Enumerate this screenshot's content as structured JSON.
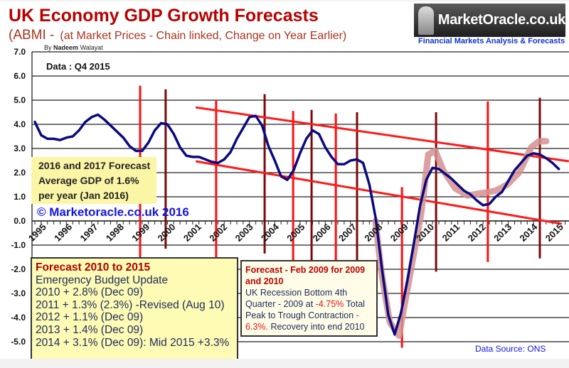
{
  "header": {
    "title": "UK Economy GDP Growth Forecasts",
    "subtitle_a": "(ABMI -",
    "subtitle_b": "(at Market Prices - Chain linked, Change on Year Earlier)",
    "byline_prefix": "By",
    "byline_name": "Nadeem",
    "byline_surname": "Walayat",
    "logo_text": "MarketOracle.co.uk",
    "tagline": "Financial Markets Analysis & Forecasts",
    "data_label": "Data : Q4 2015"
  },
  "annotations": {
    "forecast_2016": [
      "2016 and 2017 Forecast",
      "Average GDP of 1.6%",
      "per year (Jan 2016)"
    ],
    "copyright": "© Marketoracle.co.uk 2016",
    "budget_box": {
      "title": "Forecast 2010 to 2015",
      "lines": [
        "Emergency Budget Update",
        "2010 + 2.8% (Dec 09)",
        "2011 + 1.3% (2.3%) -Revised (Aug 10)",
        "2012 + 1.1% (Dec 09)",
        "2013 + 1.4% (Dec 09)",
        "2014 + 3.1% (Dec 09): Mid 2015 +3.3%"
      ]
    },
    "recession_box": {
      "title": "Forecast - Feb 2009 for 2009 and 2010",
      "text1": "UK Recession Bottom  4th Quarter - 2009 at",
      "red1": "-4.75%",
      "text2": " Total Peak to Trough Contraction",
      "red2": "- 6.3%.",
      "text3": " Recovery into end 2010"
    },
    "source": "Data Source: ONS"
  },
  "colors": {
    "gdp_line": "#0a0a80",
    "forecast_line": "#d4918f",
    "trend_line": "#ff1a1a",
    "marker_red": "#ff1010",
    "marker_dark": "#7a0a0a",
    "title": "#b80000"
  },
  "chart_data": {
    "type": "line",
    "title": "UK Economy GDP Growth Forecasts",
    "ylim": [
      -5.0,
      7.0
    ],
    "y_ticks": [
      "7.0",
      "6.0",
      "5.0",
      "4.0",
      "3.0",
      "2.0",
      "1.0",
      "0.0",
      "-1.0",
      "-2.0",
      "-3.0",
      "-4.0",
      "-5.0"
    ],
    "x_ticks": [
      "1995",
      "1996",
      "1997",
      "1998",
      "1999",
      "2000",
      "2001",
      "2002",
      "2003",
      "2004",
      "2005",
      "2006",
      "2007",
      "2008",
      "2009",
      "2010",
      "2011",
      "2012",
      "2013",
      "2014",
      "2015"
    ],
    "grid": true,
    "series": [
      {
        "role": "actual",
        "start": "1995 Q1",
        "frequency": "quarterly",
        "values": [
          4.1,
          3.55,
          3.4,
          3.4,
          3.35,
          3.45,
          3.5,
          3.75,
          4.1,
          4.3,
          4.4,
          4.2,
          3.95,
          3.7,
          3.45,
          3.1,
          2.9,
          2.9,
          3.25,
          3.75,
          4.05,
          4.0,
          3.6,
          3.05,
          2.7,
          2.65,
          2.65,
          2.55,
          2.45,
          2.4,
          2.55,
          2.85,
          3.4,
          3.85,
          4.3,
          4.35,
          3.95,
          3.1,
          2.5,
          1.85,
          1.7,
          2.1,
          2.8,
          3.4,
          3.75,
          3.6,
          3.05,
          2.65,
          2.35,
          2.35,
          2.5,
          2.55,
          2.4,
          1.5,
          0.1,
          -2.0,
          -3.9,
          -4.7,
          -3.8,
          -2.5,
          -1.0,
          0.6,
          1.7,
          2.2,
          2.15,
          1.95,
          1.75,
          1.5,
          1.25,
          1.1,
          0.85,
          0.65,
          0.7,
          1.0,
          1.2,
          1.65,
          2.1,
          2.4,
          2.7,
          2.8,
          2.75,
          2.6,
          2.4,
          2.15
        ]
      },
      {
        "role": "forecast",
        "points": [
          [
            2008.49,
            0.0
          ],
          [
            2008.72,
            -2.1
          ],
          [
            2009.06,
            -4.2
          ],
          [
            2009.42,
            -4.75
          ],
          [
            2010.3,
            0.3
          ],
          [
            2010.44,
            1.5
          ],
          [
            2010.58,
            2.75
          ],
          [
            2010.86,
            2.9
          ],
          [
            2011.17,
            2.1
          ],
          [
            2011.65,
            1.35
          ],
          [
            2012.13,
            1.05
          ],
          [
            2012.69,
            1.15
          ],
          [
            2013.25,
            1.25
          ],
          [
            2013.7,
            1.5
          ],
          [
            2014.18,
            2.0
          ],
          [
            2014.66,
            3.05
          ],
          [
            2014.97,
            3.3
          ],
          [
            2015.25,
            3.3
          ]
        ]
      }
    ],
    "trend_lines": [
      {
        "from": [
          2001.37,
          4.7
        ],
        "to": [
          2016.15,
          2.47
        ]
      },
      {
        "from": [
          2001.37,
          2.47
        ],
        "to": [
          2015.87,
          -0.12
        ]
      }
    ],
    "marker_lines": [
      {
        "year": 1999.17,
        "top": 5.6,
        "bottom": -2.6,
        "color": "red"
      },
      {
        "year": 2000.18,
        "top": 5.45,
        "bottom": -1.15,
        "color": "dark"
      },
      {
        "year": 2002.18,
        "top": 5.0,
        "bottom": -1.6,
        "color": "red"
      },
      {
        "year": 2004.1,
        "top": 5.25,
        "bottom": -1.35,
        "color": "dark"
      },
      {
        "year": 2005.23,
        "top": 4.55,
        "bottom": -1.95,
        "color": "red"
      },
      {
        "year": 2005.96,
        "top": 4.6,
        "bottom": -1.65,
        "color": "dark"
      },
      {
        "year": 2006.92,
        "top": 4.45,
        "bottom": -2.2,
        "color": "red"
      },
      {
        "year": 2007.76,
        "top": 4.5,
        "bottom": -1.9,
        "color": "dark"
      },
      {
        "year": 2009.54,
        "top": 1.4,
        "bottom": -5.25,
        "color": "red"
      },
      {
        "year": 2010.89,
        "top": 4.5,
        "bottom": -2.1,
        "color": "dark"
      },
      {
        "year": 2012.94,
        "top": 4.95,
        "bottom": -1.7,
        "color": "red"
      },
      {
        "year": 2015.0,
        "top": 5.1,
        "bottom": -1.55,
        "color": "dark"
      }
    ]
  }
}
